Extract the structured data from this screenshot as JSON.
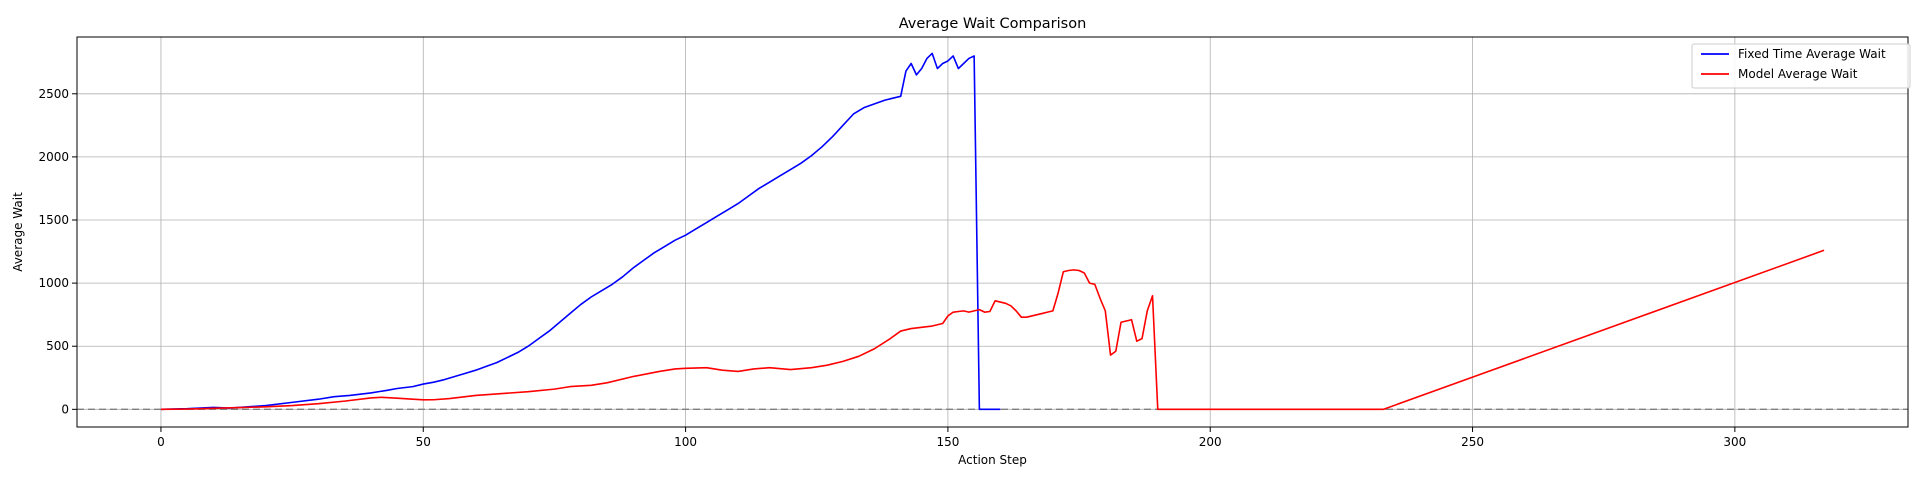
{
  "chart_data": {
    "type": "line",
    "title": "Average Wait Comparison",
    "xlabel": "Action Step",
    "ylabel": "Average Wait",
    "xlim": [
      -16,
      333
    ],
    "ylim": [
      -140,
      2950
    ],
    "xticks": [
      0,
      50,
      100,
      150,
      200,
      250,
      300
    ],
    "yticks": [
      0,
      500,
      1000,
      1500,
      2000,
      2500
    ],
    "grid": true,
    "legend_position": "top-right",
    "reference_line": {
      "y": 0,
      "style": "dashed",
      "color": "#808080"
    },
    "series": [
      {
        "name": "Fixed Time Average Wait",
        "color": "#0000ff",
        "x": [
          0,
          5,
          10,
          13,
          15,
          20,
          25,
          30,
          33,
          36,
          40,
          43,
          45,
          48,
          50,
          52,
          54,
          56,
          58,
          60,
          62,
          64,
          66,
          68,
          70,
          72,
          74,
          76,
          78,
          80,
          82,
          84,
          86,
          88,
          90,
          92,
          94,
          96,
          98,
          100,
          102,
          104,
          106,
          108,
          110,
          112,
          114,
          116,
          118,
          120,
          122,
          124,
          126,
          128,
          130,
          132,
          134,
          136,
          138,
          140,
          141,
          142,
          143,
          144,
          145,
          146,
          147,
          148,
          149,
          150,
          151,
          152,
          153,
          154,
          155,
          156,
          157,
          158,
          160
        ],
        "y": [
          0,
          5,
          15,
          10,
          15,
          30,
          55,
          80,
          100,
          110,
          130,
          150,
          165,
          180,
          200,
          215,
          235,
          260,
          285,
          310,
          340,
          370,
          410,
          450,
          500,
          560,
          620,
          690,
          760,
          830,
          890,
          940,
          990,
          1050,
          1120,
          1180,
          1240,
          1290,
          1340,
          1380,
          1430,
          1480,
          1530,
          1580,
          1630,
          1690,
          1750,
          1800,
          1850,
          1900,
          1950,
          2010,
          2080,
          2160,
          2250,
          2340,
          2390,
          2420,
          2450,
          2470,
          2480,
          2680,
          2740,
          2650,
          2700,
          2780,
          2820,
          2700,
          2740,
          2760,
          2800,
          2700,
          2740,
          2780,
          2800,
          0,
          0,
          0,
          0
        ]
      },
      {
        "name": "Model Average Wait",
        "color": "#ff0000",
        "x": [
          0,
          5,
          10,
          15,
          20,
          25,
          30,
          35,
          40,
          42,
          45,
          48,
          50,
          52,
          55,
          60,
          65,
          70,
          75,
          78,
          82,
          85,
          90,
          95,
          98,
          100,
          104,
          107,
          110,
          113,
          116,
          120,
          124,
          127,
          130,
          133,
          136,
          139,
          141,
          143,
          145,
          147,
          149,
          150,
          151,
          152,
          153,
          154,
          155,
          156,
          157,
          158,
          159,
          160,
          161,
          162,
          163,
          164,
          165,
          166,
          167,
          168,
          169,
          170,
          171,
          172,
          173,
          174,
          175,
          176,
          177,
          178,
          179,
          180,
          181,
          182,
          183,
          184,
          185,
          186,
          187,
          188,
          189,
          190,
          191,
          200,
          233,
          317
        ],
        "y": [
          0,
          2,
          8,
          14,
          20,
          30,
          45,
          65,
          90,
          95,
          88,
          80,
          75,
          76,
          85,
          110,
          125,
          140,
          160,
          180,
          190,
          210,
          260,
          300,
          320,
          325,
          330,
          310,
          300,
          320,
          330,
          315,
          330,
          350,
          380,
          420,
          480,
          560,
          620,
          640,
          650,
          660,
          680,
          740,
          770,
          775,
          780,
          770,
          780,
          790,
          770,
          775,
          860,
          850,
          840,
          820,
          780,
          730,
          730,
          740,
          750,
          760,
          770,
          780,
          920,
          1090,
          1100,
          1105,
          1100,
          1080,
          1000,
          990,
          880,
          780,
          430,
          460,
          690,
          700,
          710,
          540,
          560,
          780,
          900,
          0,
          0,
          0,
          0,
          1260
        ]
      }
    ]
  }
}
